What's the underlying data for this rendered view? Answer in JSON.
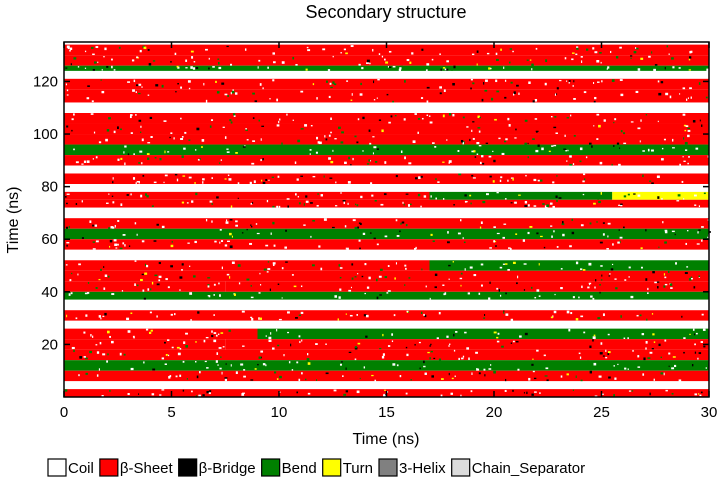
{
  "chart_data": {
    "type": "heatmap",
    "title": "Secondary structure",
    "xlabel": "Time (ns)",
    "ylabel": "Time (ns)",
    "xlim": [
      0,
      30
    ],
    "ylim": [
      0,
      135
    ],
    "x_ticks": [
      0,
      5,
      10,
      15,
      20,
      25,
      30
    ],
    "x_tick_labels": [
      "0",
      "5",
      "10",
      "15",
      "20",
      "25",
      "30"
    ],
    "y_ticks": [
      20,
      40,
      60,
      80,
      100,
      120
    ],
    "y_tick_labels": [
      "20",
      "40",
      "60",
      "80",
      "100",
      "120"
    ],
    "grid": false,
    "legend_position": "bottom",
    "categories": [
      {
        "name": "Coil",
        "color": "#ffffff"
      },
      {
        "name": "β-Sheet",
        "color": "#ff0000"
      },
      {
        "name": "β-Bridge",
        "color": "#000000"
      },
      {
        "name": "Bend",
        "color": "#008000"
      },
      {
        "name": "Turn",
        "color": "#ffff00"
      },
      {
        "name": "3-Helix",
        "color": "#808080"
      },
      {
        "name": "Chain_Separator",
        "color": "#dcdcdc"
      }
    ],
    "residue_bands": [
      {
        "y": [
          130,
          134
        ],
        "segments": [
          [
            0,
            30,
            "β-Sheet"
          ]
        ]
      },
      {
        "y": [
          126,
          130
        ],
        "segments": [
          [
            0,
            7,
            "β-Sheet"
          ],
          [
            7,
            30,
            "β-Sheet"
          ]
        ]
      },
      {
        "y": [
          124,
          126
        ],
        "segments": [
          [
            0,
            30,
            "Bend"
          ]
        ]
      },
      {
        "y": [
          121,
          124
        ],
        "segments": [
          [
            0,
            30,
            "Coil"
          ]
        ]
      },
      {
        "y": [
          117,
          121
        ],
        "segments": [
          [
            0,
            30,
            "β-Sheet"
          ]
        ]
      },
      {
        "y": [
          112,
          117
        ],
        "segments": [
          [
            0,
            30,
            "β-Sheet"
          ]
        ]
      },
      {
        "y": [
          108,
          112
        ],
        "segments": [
          [
            0,
            30,
            "Coil"
          ]
        ]
      },
      {
        "y": [
          104,
          108
        ],
        "segments": [
          [
            0,
            30,
            "β-Sheet"
          ]
        ]
      },
      {
        "y": [
          100,
          104
        ],
        "segments": [
          [
            0,
            30,
            "β-Sheet"
          ]
        ]
      },
      {
        "y": [
          96,
          100
        ],
        "segments": [
          [
            0,
            15,
            "β-Sheet"
          ],
          [
            15,
            30,
            "β-Sheet"
          ]
        ]
      },
      {
        "y": [
          92,
          96
        ],
        "segments": [
          [
            0,
            30,
            "Bend"
          ]
        ]
      },
      {
        "y": [
          88,
          92
        ],
        "segments": [
          [
            0,
            15,
            "β-Sheet"
          ],
          [
            15,
            30,
            "β-Sheet"
          ]
        ]
      },
      {
        "y": [
          85,
          88
        ],
        "segments": [
          [
            0,
            30,
            "Coil"
          ]
        ]
      },
      {
        "y": [
          81,
          85
        ],
        "segments": [
          [
            0,
            30,
            "β-Sheet"
          ]
        ]
      },
      {
        "y": [
          78,
          81
        ],
        "segments": [
          [
            0,
            30,
            "Coil"
          ]
        ]
      },
      {
        "y": [
          75,
          78
        ],
        "segments": [
          [
            0,
            17,
            "β-Sheet"
          ],
          [
            17,
            25.5,
            "Bend"
          ],
          [
            25.5,
            30,
            "Turn"
          ]
        ]
      },
      {
        "y": [
          72,
          75
        ],
        "segments": [
          [
            0,
            30,
            "β-Sheet"
          ]
        ]
      },
      {
        "y": [
          68,
          72
        ],
        "segments": [
          [
            0,
            30,
            "Coil"
          ]
        ]
      },
      {
        "y": [
          64,
          68
        ],
        "segments": [
          [
            0,
            30,
            "β-Sheet"
          ]
        ]
      },
      {
        "y": [
          60,
          64
        ],
        "segments": [
          [
            0,
            30,
            "Bend"
          ]
        ]
      },
      {
        "y": [
          56,
          60
        ],
        "segments": [
          [
            0,
            30,
            "β-Sheet"
          ]
        ]
      },
      {
        "y": [
          52,
          56
        ],
        "segments": [
          [
            0,
            30,
            "Coil"
          ]
        ]
      },
      {
        "y": [
          48,
          52
        ],
        "segments": [
          [
            0,
            17,
            "β-Sheet"
          ],
          [
            17,
            30,
            "Bend"
          ]
        ]
      },
      {
        "y": [
          44,
          48
        ],
        "segments": [
          [
            0,
            30,
            "β-Sheet"
          ]
        ]
      },
      {
        "y": [
          40,
          44
        ],
        "segments": [
          [
            0,
            7.5,
            "β-Sheet"
          ],
          [
            7.5,
            30,
            "β-Sheet"
          ]
        ]
      },
      {
        "y": [
          37,
          40
        ],
        "segments": [
          [
            0,
            30,
            "Bend"
          ]
        ]
      },
      {
        "y": [
          33,
          37
        ],
        "segments": [
          [
            0,
            30,
            "Coil"
          ]
        ]
      },
      {
        "y": [
          29,
          33
        ],
        "segments": [
          [
            0,
            30,
            "β-Sheet"
          ]
        ]
      },
      {
        "y": [
          26,
          29
        ],
        "segments": [
          [
            0,
            30,
            "Coil"
          ]
        ]
      },
      {
        "y": [
          22,
          26
        ],
        "segments": [
          [
            0,
            9,
            "β-Sheet"
          ],
          [
            9,
            30,
            "Bend"
          ]
        ]
      },
      {
        "y": [
          18,
          22
        ],
        "segments": [
          [
            0,
            7.5,
            "β-Sheet"
          ],
          [
            7.5,
            30,
            "β-Sheet"
          ]
        ]
      },
      {
        "y": [
          14,
          18
        ],
        "segments": [
          [
            0,
            30,
            "β-Sheet"
          ]
        ]
      },
      {
        "y": [
          10,
          14
        ],
        "segments": [
          [
            0,
            30,
            "Bend"
          ]
        ]
      },
      {
        "y": [
          6,
          10
        ],
        "segments": [
          [
            0,
            30,
            "β-Sheet"
          ]
        ]
      },
      {
        "y": [
          3,
          6
        ],
        "segments": [
          [
            0,
            30,
            "Coil"
          ]
        ]
      },
      {
        "y": [
          0,
          3
        ],
        "segments": [
          [
            0,
            30,
            "β-Sheet"
          ]
        ]
      }
    ]
  }
}
